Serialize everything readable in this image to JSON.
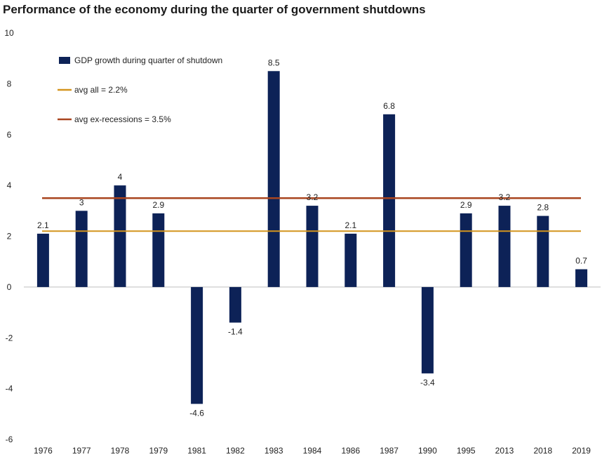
{
  "chart_data": {
    "type": "bar",
    "title": "Performance of the economy during the quarter of government shutdowns",
    "categories": [
      "1976",
      "1977",
      "1978",
      "1979",
      "1981",
      "1982",
      "1983",
      "1984",
      "1986",
      "1987",
      "1990",
      "1995",
      "2013",
      "2018",
      "2019"
    ],
    "series": [
      {
        "name": "GDP growth during quarter of shutdown",
        "values": [
          2.1,
          3,
          4,
          2.9,
          -4.6,
          -1.4,
          8.5,
          3.2,
          2.1,
          6.8,
          -3.4,
          2.9,
          3.2,
          2.8,
          0.7
        ],
        "labels": [
          "2.1",
          "3",
          "4",
          "2.9",
          "-4.6",
          "-1.4",
          "8.5",
          "3.2",
          "2.1",
          "6.8",
          "-3.4",
          "2.9",
          "3.2",
          "2.8",
          "0.7"
        ],
        "color": "#0d2257"
      }
    ],
    "reference_lines": [
      {
        "name": "avg all = 2.2%",
        "value": 2.2,
        "color": "#d4951e"
      },
      {
        "name": "avg ex-recessions = 3.5%",
        "value": 3.5,
        "color": "#a9451f"
      }
    ],
    "ylim": [
      -6,
      10
    ],
    "yticks": [
      "-6",
      "-4",
      "-2",
      "0",
      "2",
      "4",
      "6",
      "8",
      "10"
    ],
    "xlabel": "",
    "ylabel": "",
    "grid": false,
    "legend_position": "top-left"
  }
}
